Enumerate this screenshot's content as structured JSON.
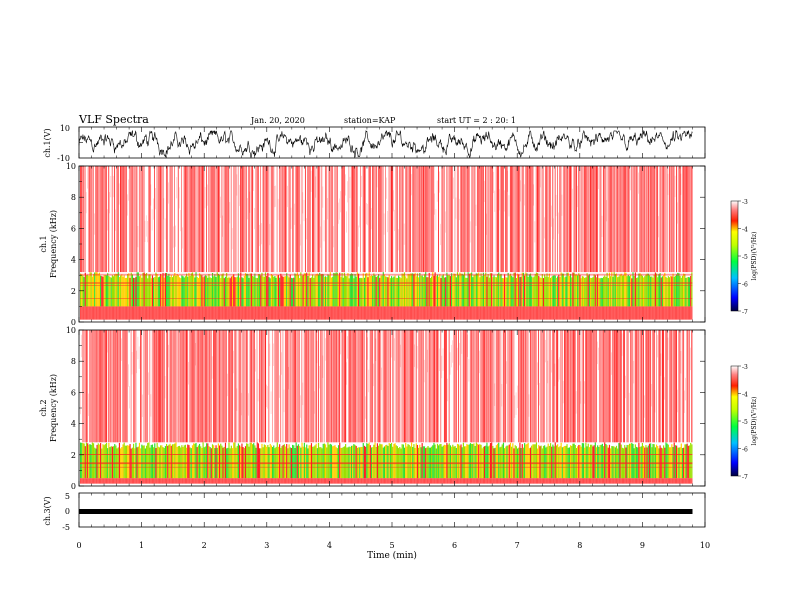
{
  "header": {
    "title": "VLF Spectra",
    "date": "Jan. 20, 2020",
    "station": "station=KAP",
    "start_time": "start UT =  2 : 20: 1"
  },
  "chart_data": [
    {
      "type": "line",
      "panel": "ch.1 waveform",
      "ylabel": "ch.1(V)",
      "ylim": [
        -10,
        10
      ],
      "ytick_labels": [
        "10",
        "-10"
      ],
      "x_range_min": [
        0,
        9.8
      ],
      "description_values": {
        "baseline_mean_V": -1,
        "envelope_low_V": -10,
        "envelope_high_V": 8
      }
    },
    {
      "type": "heatmap",
      "panel": "ch.1 spectrogram",
      "ylabel": "ch.1\nFrequency (kHz)",
      "ylabel_line1": "ch.1",
      "ylabel_line2": "Frequency (kHz)",
      "ylim": [
        0,
        10
      ],
      "ytick_labels": [
        "0",
        "2",
        "4",
        "6",
        "8",
        "10"
      ],
      "band_green_khz": [
        1.0,
        3.2
      ],
      "band_noise_khz": [
        3.2,
        10
      ],
      "colorbar": {
        "label": "log(PSD)(V²/Hz)",
        "range": [
          -7,
          -3
        ],
        "tick_labels": [
          "-3",
          "-4",
          "-5",
          "-6",
          "-7"
        ]
      }
    },
    {
      "type": "heatmap",
      "panel": "ch.2 spectrogram",
      "ylabel_line1": "ch.2",
      "ylabel_line2": "Frequency (kHz)",
      "ylim": [
        0,
        10
      ],
      "ytick_labels": [
        "0",
        "2",
        "4",
        "6",
        "8",
        "10"
      ],
      "band_green_khz": [
        0.5,
        2.8
      ],
      "band_noise_khz": [
        2.8,
        10
      ],
      "colorbar": {
        "label": "log(PSD)(V²/Hz)",
        "range": [
          -7,
          -3
        ],
        "tick_labels": [
          "-3",
          "-4",
          "-5",
          "-6",
          "-7"
        ]
      }
    },
    {
      "type": "line",
      "panel": "ch.3 waveform",
      "ylabel": "ch.3(V)",
      "ylim": [
        -5,
        5
      ],
      "ytick_labels": [
        "5",
        "0",
        "-5"
      ],
      "trace_level_V": 0
    }
  ],
  "xaxis": {
    "label": "Time (min)",
    "range": [
      0,
      10
    ],
    "tick_labels": [
      "0",
      "1",
      "2",
      "3",
      "4",
      "5",
      "6",
      "7",
      "8",
      "9",
      "10"
    ]
  },
  "colors": {
    "noise": "#ff2020",
    "band": "#9be000",
    "band2": "#30e030",
    "yellow": "#ffd000"
  }
}
